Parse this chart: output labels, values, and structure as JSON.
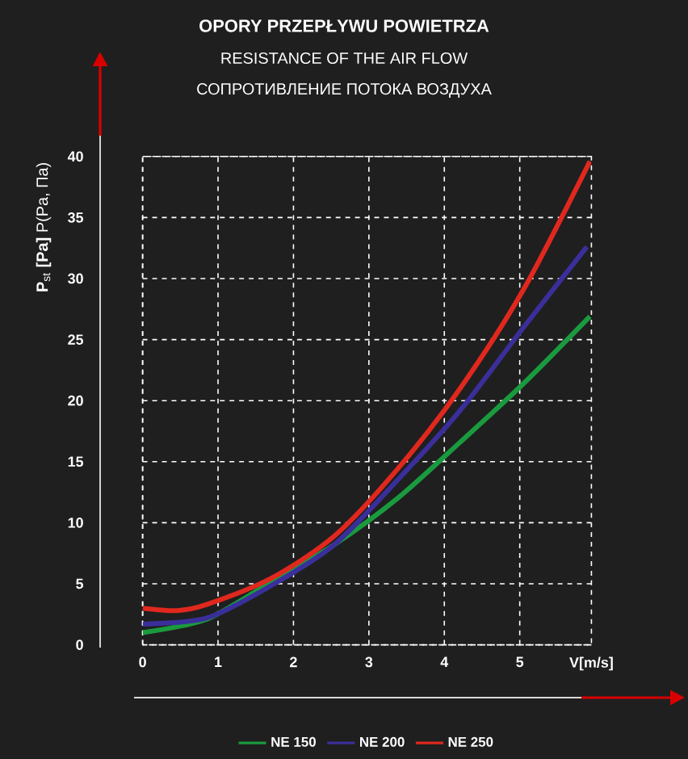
{
  "chart_data": {
    "type": "line",
    "title": "OPORY PRZEPŁYWU POWIETRZA",
    "subtitle": "RESISTANCE OF THE AIR FLOW",
    "annotations": [
      "СОПРОТИВЛЕНИЕ ПОТОКА ВОЗДУХА"
    ],
    "xlabel": "V[m/s]",
    "ylabel": "**P**$_{st}$ **[Pa]** P(Pa, Па)",
    "xlim": [
      0,
      5.95
    ],
    "ylim": [
      0,
      40
    ],
    "xticks": [
      0,
      1,
      2,
      3,
      4,
      5
    ],
    "yticks": [
      0,
      5,
      10,
      15,
      20,
      25,
      30,
      35,
      40
    ],
    "grid": true,
    "legend": "bottom",
    "marker": "none",
    "line_style": "solid",
    "series": [
      {
        "name": "NE 150",
        "color": "#1a9a3e",
        "x": [
          0,
          0.85,
          1.69,
          2.54,
          3.38,
          4.21,
          5.05,
          5.93
        ],
        "values": [
          1.0,
          2.1,
          5.1,
          8.2,
          12.0,
          16.6,
          21.4,
          26.9
        ]
      },
      {
        "name": "NE 200",
        "color": "#3a2f9a",
        "x": [
          0,
          0.85,
          1.69,
          2.54,
          3.38,
          4.21,
          5.05,
          5.89
        ],
        "values": [
          1.7,
          2.2,
          4.8,
          8.2,
          13.5,
          19.2,
          26.0,
          32.6
        ]
      },
      {
        "name": "NE 250",
        "color": "#e0281e",
        "x": [
          0,
          0.46,
          0.85,
          1.69,
          2.54,
          3.38,
          4.21,
          5.05,
          5.93
        ],
        "values": [
          3.0,
          2.8,
          3.3,
          5.4,
          8.9,
          14.4,
          21.0,
          29.1,
          39.6
        ]
      }
    ]
  }
}
